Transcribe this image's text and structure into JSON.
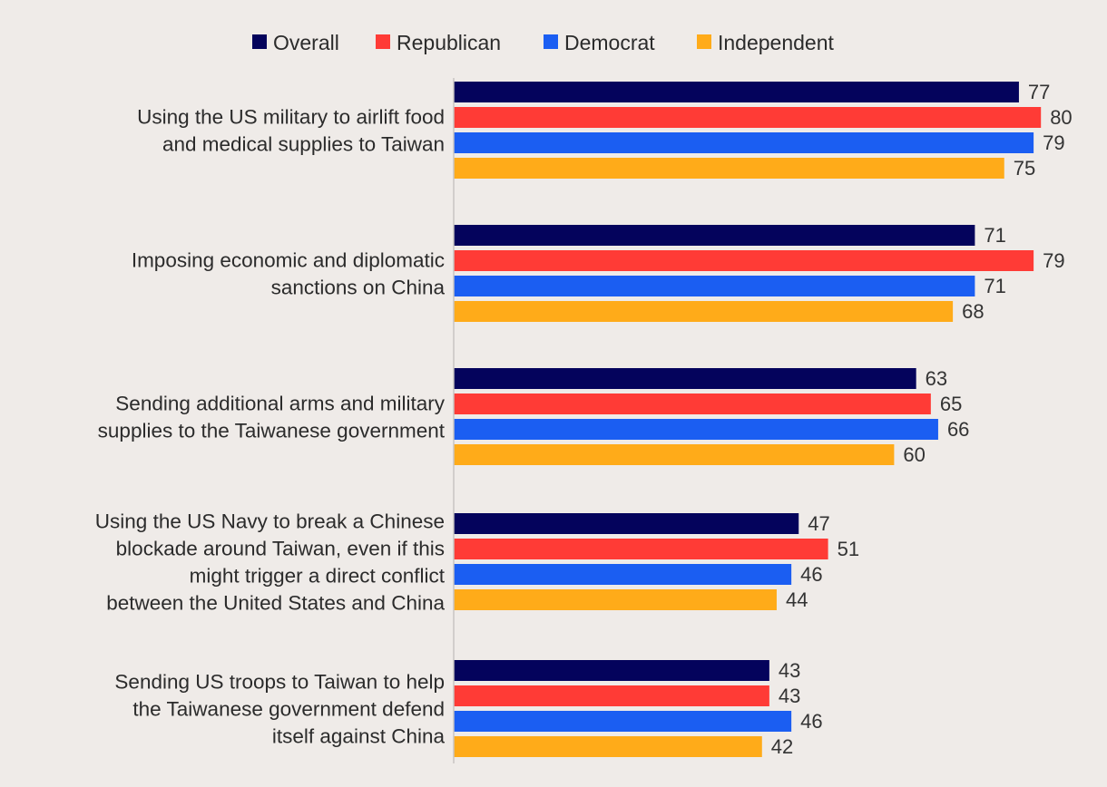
{
  "chart_data": {
    "type": "bar",
    "orientation": "horizontal",
    "title": "",
    "xlabel": "",
    "ylabel": "",
    "xlim": [
      0,
      80
    ],
    "grid": false,
    "legend_position": "top-center",
    "categories": [
      [
        "Using the US military to airlift food",
        "and medical supplies to Taiwan"
      ],
      [
        "Imposing economic and diplomatic",
        "sanctions on China"
      ],
      [
        "Sending additional arms and military",
        "supplies to the Taiwanese government"
      ],
      [
        "Using the US Navy to break a Chinese",
        "blockade around Taiwan, even if this",
        "might trigger a direct conflict",
        "between the United States and China"
      ],
      [
        "Sending US troops to Taiwan to help",
        "the Taiwanese government defend",
        "itself against China"
      ]
    ],
    "series": [
      {
        "name": "Overall",
        "color": "#04035c",
        "values": [
          77,
          71,
          63,
          47,
          43
        ]
      },
      {
        "name": "Republican",
        "color": "#ff3b36",
        "values": [
          80,
          79,
          65,
          51,
          43
        ]
      },
      {
        "name": "Democrat",
        "color": "#1b5ef2",
        "values": [
          79,
          71,
          66,
          46,
          46
        ]
      },
      {
        "name": "Independent",
        "color": "#ffab19",
        "values": [
          75,
          68,
          60,
          44,
          42
        ]
      }
    ]
  },
  "colors": {
    "background": "#efebe8",
    "axis": "#c8c4c2"
  }
}
